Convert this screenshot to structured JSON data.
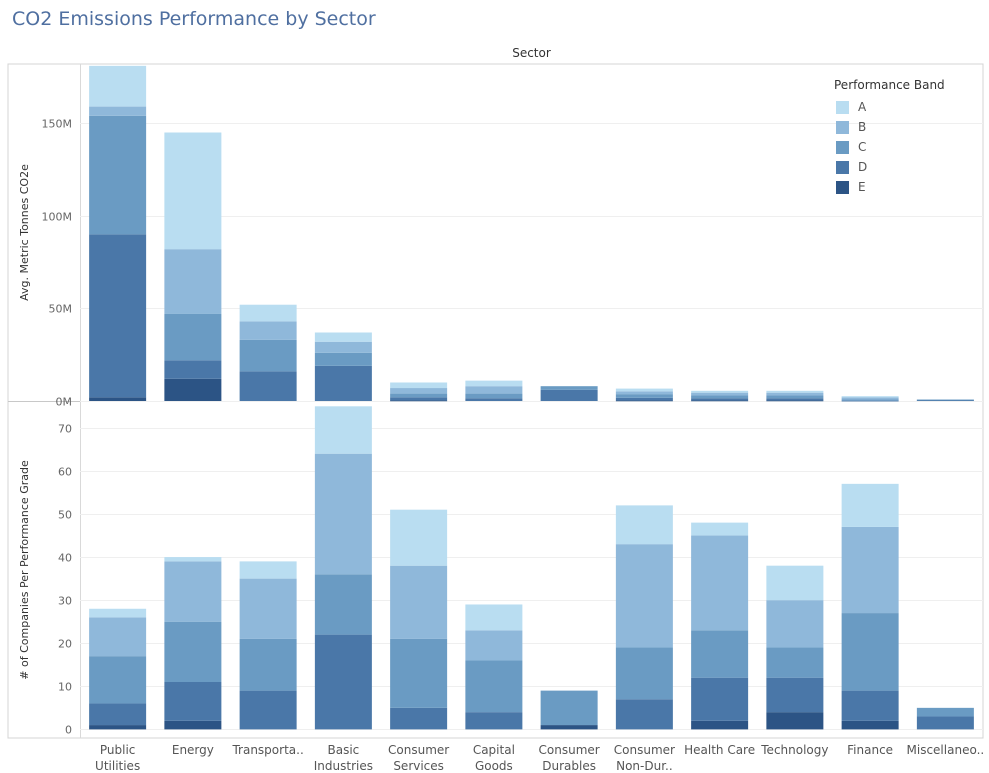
{
  "title": "CO2 Emissions Performance by Sector",
  "sector_header": "Sector",
  "colors": {
    "A": "#b9ddf1",
    "B": "#8fb8da",
    "C": "#6a9bc3",
    "D": "#4a77a8",
    "E": "#2c5485"
  },
  "legend": {
    "title": "Performance Band",
    "items": [
      "A",
      "B",
      "C",
      "D",
      "E"
    ]
  },
  "chart_data": [
    {
      "type": "bar",
      "stacked": true,
      "ylabel": "Avg. Metric Tonnes CO2e",
      "ylim": [
        0,
        182
      ],
      "yticks": [
        0,
        50,
        100,
        150
      ],
      "ytick_labels": [
        "0M",
        "50M",
        "100M",
        "150M"
      ],
      "categories": [
        "Public\nUtilities",
        "Energy",
        "Transporta..",
        "Basic\nIndustries",
        "Consumer\nServices",
        "Capital\nGoods",
        "Consumer\nDurables",
        "Consumer\nNon-Dur..",
        "Health Care",
        "Technology",
        "Finance",
        "Miscellaneo.."
      ],
      "series": [
        {
          "name": "E",
          "values": [
            2,
            12,
            0,
            0,
            0.3,
            0,
            0,
            0.3,
            0.3,
            0.3,
            0,
            0
          ]
        },
        {
          "name": "D",
          "values": [
            88,
            10,
            16,
            19,
            1.7,
            1.5,
            6,
            1.4,
            1.2,
            1.2,
            0.2,
            0.6
          ]
        },
        {
          "name": "C",
          "values": [
            64,
            25,
            17,
            7,
            2,
            2.5,
            2,
            2,
            1.5,
            1.5,
            0.6,
            0.2
          ]
        },
        {
          "name": "B",
          "values": [
            5,
            35,
            10,
            6,
            3,
            4,
            0,
            1.5,
            1.5,
            1.5,
            1.2,
            0
          ]
        },
        {
          "name": "A",
          "values": [
            22,
            63,
            9,
            5,
            3,
            3,
            0,
            1.5,
            1,
            1,
            0.6,
            0
          ]
        }
      ]
    },
    {
      "type": "bar",
      "stacked": true,
      "ylabel": "# of Companies Per Performance Grade",
      "ylim": [
        -2,
        76
      ],
      "yticks": [
        0,
        10,
        20,
        30,
        40,
        50,
        60,
        70
      ],
      "ytick_labels": [
        "0",
        "10",
        "20",
        "30",
        "40",
        "50",
        "60",
        "70"
      ],
      "categories": [
        "Public\nUtilities",
        "Energy",
        "Transporta..",
        "Basic\nIndustries",
        "Consumer\nServices",
        "Capital\nGoods",
        "Consumer\nDurables",
        "Consumer\nNon-Dur..",
        "Health Care",
        "Technology",
        "Finance",
        "Miscellaneo.."
      ],
      "series": [
        {
          "name": "E",
          "values": [
            1,
            2,
            0,
            0,
            0,
            0,
            1,
            0,
            2,
            4,
            2,
            0
          ]
        },
        {
          "name": "D",
          "values": [
            5,
            9,
            9,
            22,
            5,
            4,
            0,
            7,
            10,
            8,
            7,
            3
          ]
        },
        {
          "name": "C",
          "values": [
            11,
            14,
            12,
            14,
            16,
            12,
            8,
            12,
            11,
            7,
            18,
            2
          ]
        },
        {
          "name": "B",
          "values": [
            9,
            14,
            14,
            28,
            17,
            7,
            0,
            24,
            22,
            11,
            20,
            0
          ]
        },
        {
          "name": "A",
          "values": [
            2,
            1,
            4,
            11,
            13,
            6,
            0,
            9,
            3,
            8,
            10,
            0
          ]
        }
      ]
    }
  ]
}
